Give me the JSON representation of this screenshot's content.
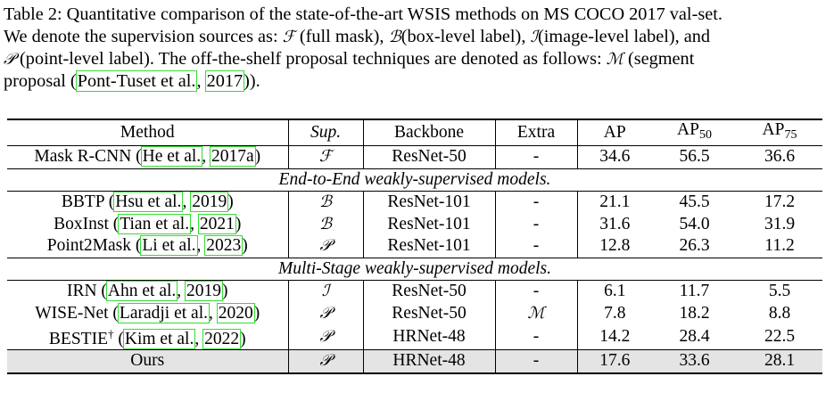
{
  "caption": {
    "line1": "Table 2: Quantitative comparison of the state-of-the-art WSIS methods on MS COCO 2017 val-set.",
    "line2_a": "We denote the supervision sources as: ",
    "sym_F": "ℱ",
    "line2_b": " (full mask), ",
    "sym_B": "ℬ",
    "line2_c": "(box-level label), ",
    "sym_I": "ℐ",
    "line2_d": "(image-level label), and",
    "sym_P": "𝒫",
    "line3_a": " (point-level label).  The off-the-shelf proposal techniques are denoted as follows: ",
    "sym_M": "ℳ",
    "line3_b": " (segment",
    "line4_a": "proposal  (",
    "line4_cite": "Pont-Tuset et al.",
    "line4_sep": ", ",
    "line4_year": "2017",
    "line4_b": "))."
  },
  "table": {
    "headers": {
      "method": "Method",
      "sup": "Sup.",
      "backbone": "Backbone",
      "extra": "Extra",
      "ap": "AP",
      "ap50_base": "AP",
      "ap50_sub": "50",
      "ap75_base": "AP",
      "ap75_sub": "75"
    },
    "group_e2e": "End-to-End weakly-supervised models.",
    "group_ms": "Multi-Stage weakly-supervised models.",
    "rows": [
      {
        "name": "Mask R-CNN",
        "cite": "He et al.",
        "year": "2017a",
        "sup": "ℱ",
        "backbone": "ResNet-50",
        "extra": "-",
        "ap": "34.6",
        "ap50": "56.5",
        "ap75": "36.6"
      },
      {
        "name": "BBTP",
        "cite": "Hsu et al.",
        "year": "2019",
        "sup": "ℬ",
        "backbone": "ResNet-101",
        "extra": "-",
        "ap": "21.1",
        "ap50": "45.5",
        "ap75": "17.2"
      },
      {
        "name": "BoxInst",
        "cite": "Tian et al.",
        "year": "2021",
        "sup": "ℬ",
        "backbone": "ResNet-101",
        "extra": "-",
        "ap": "31.6",
        "ap50": "54.0",
        "ap75": "31.9"
      },
      {
        "name": "Point2Mask",
        "cite": "Li et al.",
        "year": "2023",
        "sup": "𝒫",
        "backbone": "ResNet-101",
        "extra": "-",
        "ap": "12.8",
        "ap50": "26.3",
        "ap75": "11.2"
      },
      {
        "name": "IRN",
        "cite": "Ahn et al.",
        "year": "2019",
        "sup": "ℐ",
        "backbone": "ResNet-50",
        "extra": "-",
        "ap": "6.1",
        "ap50": "11.7",
        "ap75": "5.5"
      },
      {
        "name": "WISE-Net",
        "cite": "Laradji et al.",
        "year": "2020",
        "sup": "𝒫",
        "backbone": "ResNet-50",
        "extra": "ℳ",
        "ap": "7.8",
        "ap50": "18.2",
        "ap75": "8.8"
      },
      {
        "name": "BESTIE",
        "dagger": "†",
        "cite": "Kim et al.",
        "year": "2022",
        "sup": "𝒫",
        "backbone": "HRNet-48",
        "extra": "-",
        "ap": "14.2",
        "ap50": "28.4",
        "ap75": "22.5"
      },
      {
        "name": "Ours",
        "sup": "𝒫",
        "backbone": "HRNet-48",
        "extra": "-",
        "ap": "17.6",
        "ap50": "33.6",
        "ap75": "28.1"
      }
    ]
  }
}
